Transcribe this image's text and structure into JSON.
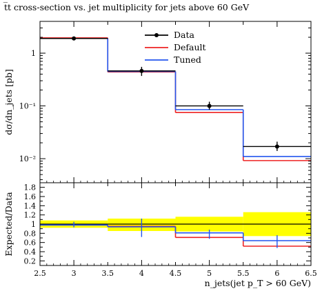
{
  "chart_data": {
    "type": "line",
    "title": "t̅t cross-section vs. jet multiplicity for jets above 60 GeV",
    "main_panel": {
      "ylabel": "dσ/dn_jets [pb]",
      "yscale": "log",
      "ylim": [
        0.0035,
        4.0
      ],
      "yticks": [
        {
          "value": 1,
          "label": "1"
        },
        {
          "value": 0.1,
          "label": "10⁻¹"
        },
        {
          "value": 0.01,
          "label": "10⁻²"
        }
      ],
      "bin_edges": [
        2.5,
        3.5,
        4.5,
        5.5,
        6.5
      ],
      "series": [
        {
          "name": "Data",
          "color": "#000000",
          "points": [
            {
              "x": 3,
              "y": 1.9,
              "ylo": 1.75,
              "yhi": 2.05
            },
            {
              "x": 4,
              "y": 0.46,
              "ylo": 0.37,
              "yhi": 0.55
            },
            {
              "x": 5,
              "y": 0.1,
              "ylo": 0.085,
              "yhi": 0.12
            },
            {
              "x": 6,
              "y": 0.017,
              "ylo": 0.014,
              "yhi": 0.021
            }
          ]
        },
        {
          "name": "Default",
          "color": "#ee2222",
          "values": [
            1.95,
            0.44,
            0.075,
            0.0092
          ]
        },
        {
          "name": "Tuned",
          "color": "#2255ee",
          "values": [
            1.9,
            0.45,
            0.085,
            0.011
          ]
        }
      ]
    },
    "ratio_panel": {
      "ylabel": "Expected/Data",
      "ylim": [
        0.1,
        1.9
      ],
      "yticks": [
        {
          "value": 0.2,
          "label": "0.2"
        },
        {
          "value": 0.4,
          "label": "0.4"
        },
        {
          "value": 0.6,
          "label": "0.6"
        },
        {
          "value": 0.8,
          "label": "0.8"
        },
        {
          "value": 1.0,
          "label": "1"
        },
        {
          "value": 1.2,
          "label": "1.2"
        },
        {
          "value": 1.4,
          "label": "1.4"
        },
        {
          "value": 1.6,
          "label": "1.6"
        },
        {
          "value": 1.8,
          "label": "1.8"
        }
      ],
      "band_color": "#ffff00",
      "band": [
        {
          "lo": 0.92,
          "hi": 1.08
        },
        {
          "lo": 0.85,
          "hi": 1.12
        },
        {
          "lo": 0.84,
          "hi": 1.16
        },
        {
          "lo": 0.74,
          "hi": 1.26
        }
      ],
      "series": [
        {
          "name": "Default",
          "color": "#ee2222",
          "values": [
            0.98,
            0.95,
            0.71,
            0.52
          ]
        },
        {
          "name": "Tuned",
          "color": "#2255ee",
          "values": [
            0.98,
            0.94,
            0.81,
            0.64
          ]
        }
      ],
      "errorbars": [
        {
          "x": 3,
          "lo": 0.93,
          "hi": 1.05
        },
        {
          "x": 4,
          "lo": 0.72,
          "hi": 1.12
        },
        {
          "x": 5,
          "lo": 0.68,
          "hi": 0.88
        },
        {
          "x": 6,
          "lo": 0.48,
          "hi": 0.76
        }
      ]
    },
    "xlim": [
      2.5,
      6.5
    ],
    "xticks": [
      {
        "value": 2.5,
        "label": "2.5"
      },
      {
        "value": 3,
        "label": "3"
      },
      {
        "value": 3.5,
        "label": "3.5"
      },
      {
        "value": 4,
        "label": "4"
      },
      {
        "value": 4.5,
        "label": "4.5"
      },
      {
        "value": 5,
        "label": "5"
      },
      {
        "value": 5.5,
        "label": "5.5"
      },
      {
        "value": 6,
        "label": "6"
      },
      {
        "value": 6.5,
        "label": "6.5"
      }
    ],
    "xlabel": "n_jets(jet p_T > 60 GeV)",
    "legend": {
      "position": "top-center",
      "entries": [
        "Data",
        "Default",
        "Tuned"
      ]
    }
  }
}
